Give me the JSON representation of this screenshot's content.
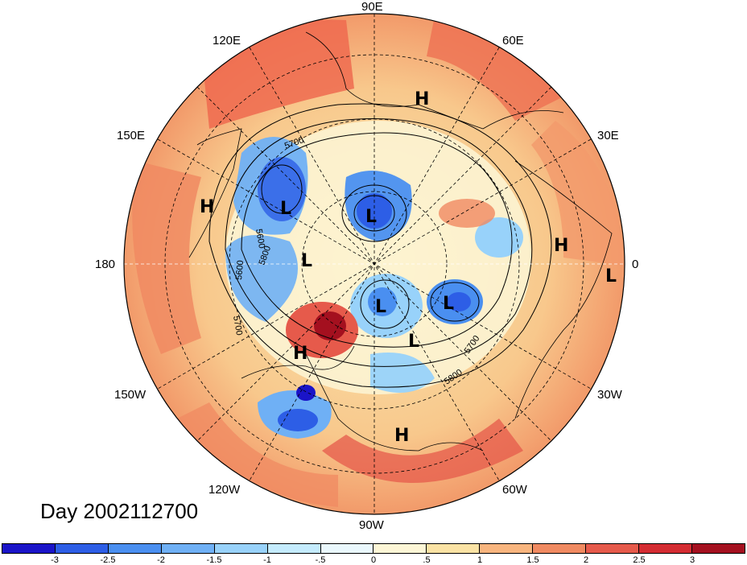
{
  "date_label": "Day 2002112700",
  "lon_labels": {
    "n90e": "90E",
    "n120e": "120E",
    "n60e": "60E",
    "n150e": "150E",
    "n30e": "30E",
    "w180": "180",
    "e0": "0",
    "s150w": "150W",
    "s30w": "30W",
    "s120w": "120W",
    "s60w": "60W",
    "s90w": "90W"
  },
  "colorbar": {
    "colors": [
      "#1a14c8",
      "#2d5ee6",
      "#4a8ff0",
      "#6fb0f5",
      "#98d2fa",
      "#c4ebfd",
      "#eaf8fd",
      "#fdf6d6",
      "#fbe3a4",
      "#f8b57e",
      "#f08a61",
      "#e65a4b",
      "#d42c32",
      "#a4101f"
    ],
    "ticks": [
      "-3",
      "-2.5",
      "-2",
      "-1.5",
      "-1",
      "-.5",
      "0",
      ".5",
      "1",
      "1.5",
      "2",
      "2.5",
      "3"
    ]
  },
  "systems": [
    {
      "label": "H",
      "name": "high-pressure-label"
    },
    {
      "label": "L",
      "name": "low-pressure-label"
    }
  ],
  "contour_labels": [
    "5700",
    "5600",
    "5800",
    "5600",
    "5700",
    "5700",
    "5800"
  ],
  "map_legend": {
    "high": "H",
    "low": "L"
  }
}
